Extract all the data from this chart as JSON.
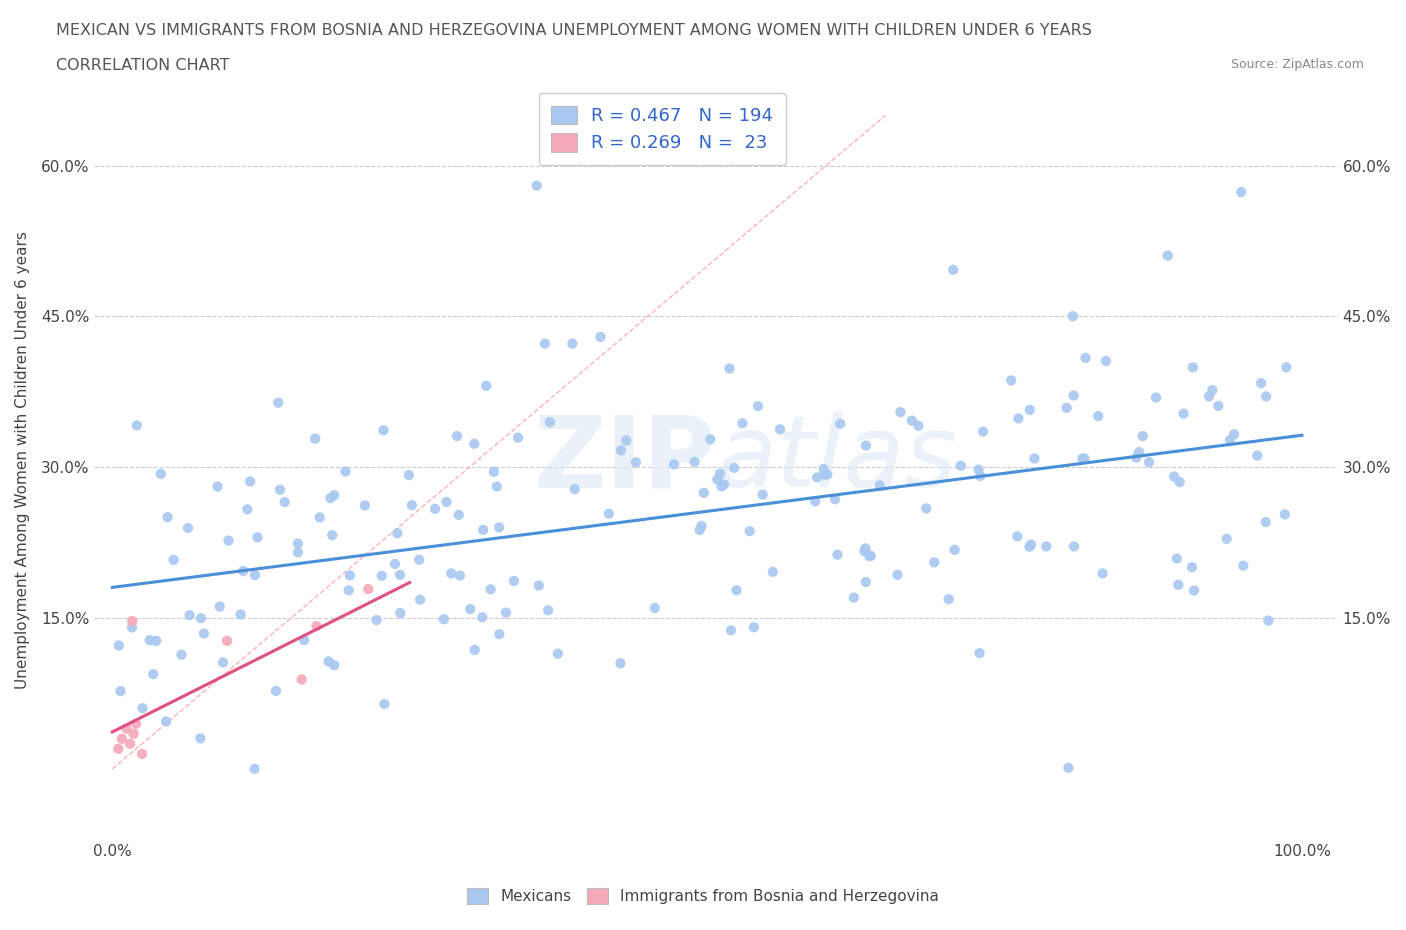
{
  "title_line1": "MEXICAN VS IMMIGRANTS FROM BOSNIA AND HERZEGOVINA UNEMPLOYMENT AMONG WOMEN WITH CHILDREN UNDER 6 YEARS",
  "title_line2": "CORRELATION CHART",
  "source": "Source: ZipAtlas.com",
  "ylabel": "Unemployment Among Women with Children Under 6 years",
  "color_mexican": "#a8c8f0",
  "color_bosnian": "#f4a8b8",
  "color_trend_mexican": "#4a90d9",
  "color_trend_bosnian": "#e05080",
  "color_diagonal": "#ffb3b3",
  "R_mexican": 0.467,
  "N_mexican": 194,
  "R_bosnian": 0.269,
  "N_bosnian": 23,
  "watermark_zip": "ZIP",
  "watermark_atlas": "atlas",
  "legend_label_mexican": "Mexicans",
  "legend_label_bosnian": "Immigrants from Bosnia and Herzegovina",
  "ytick_values": [
    0.15,
    0.3,
    0.45,
    0.6
  ],
  "ytick_labels": [
    "15.0%",
    "30.0%",
    "45.0%",
    "60.0%"
  ],
  "xtick_values": [
    0.0,
    1.0
  ],
  "xtick_labels": [
    "0.0%",
    "100.0%"
  ]
}
